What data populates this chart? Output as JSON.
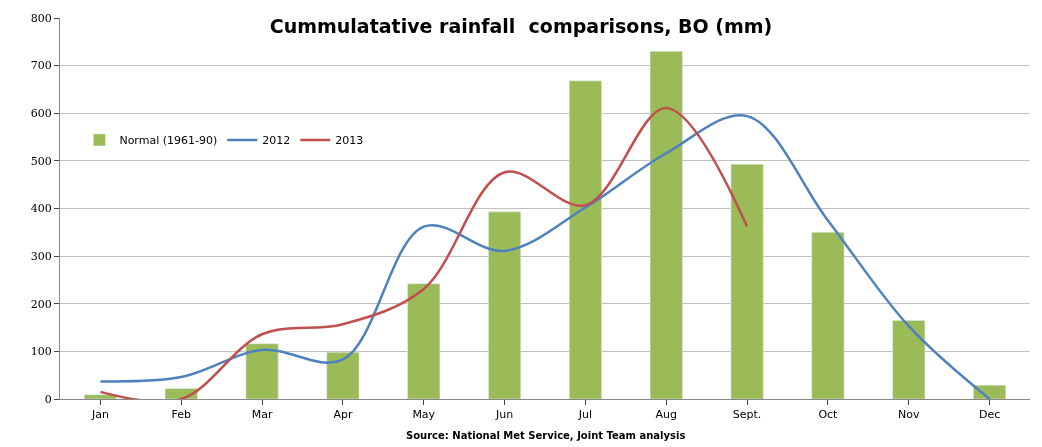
{
  "chart_data": {
    "type": "bar",
    "title": "Cummulatative rainfall  comparisons, BO (mm)",
    "annotations": [
      "Source: National Met Service, Joint Team analysis"
    ],
    "categories": [
      "Jan",
      "Feb",
      "Mar",
      "Apr",
      "May",
      "Jun",
      "Jul",
      "Aug",
      "Sept.",
      "Oct",
      "Nov",
      "Dec"
    ],
    "series": [
      {
        "name": "Normal (1961-90)",
        "color": "#9bbb59",
        "values": [
          9,
          22,
          116,
          98,
          242,
          393,
          668,
          730,
          493,
          350,
          165,
          29
        ]
      },
      {
        "name": "2012",
        "type": "line",
        "color": "#4f81bd",
        "values": [
          37,
          46,
          103,
          83,
          362,
          311,
          402,
          516,
          594,
          375,
          153,
          0
        ]
      },
      {
        "name": "2013",
        "type": "line",
        "color": "#c0504d",
        "values": [
          15,
          0,
          136,
          157,
          231,
          476,
          407,
          611,
          362,
          null,
          null,
          null
        ]
      }
    ],
    "ylim": [
      0,
      800
    ],
    "yticks": [
      0,
      100,
      200,
      300,
      400,
      500,
      600,
      700,
      800
    ],
    "grid": "y",
    "legend": "top left",
    "marker": "none",
    "line_style": "solid"
  }
}
